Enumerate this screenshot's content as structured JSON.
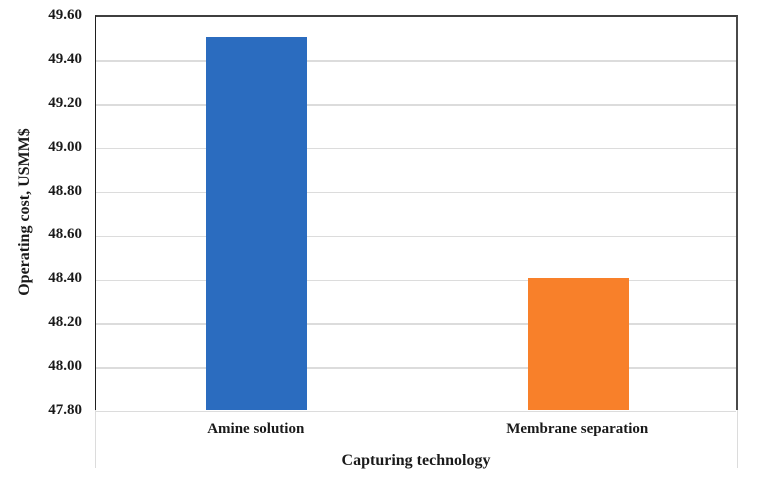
{
  "chart_data": {
    "type": "bar",
    "title": "",
    "categories": [
      "Amine solution",
      "Membrane separation"
    ],
    "values": [
      49.5,
      48.4
    ],
    "xlabel": "Capturing technology",
    "ylabel": "Operating cost, USMM$",
    "ylim": [
      47.8,
      49.6
    ],
    "ytick_step": 0.2,
    "ytick_labels": [
      "49.60",
      "49.40",
      "49.20",
      "49.00",
      "48.80",
      "48.60",
      "48.40",
      "48.20",
      "48.00",
      "47.80"
    ],
    "grid": "horizontal",
    "legend": "none",
    "bar_colors": [
      "#2b6cbf",
      "#f8802a"
    ],
    "gridline_color": "#dcdcdc",
    "axis_color": "#3f3f3f",
    "text_color": "#1a1a1a"
  }
}
